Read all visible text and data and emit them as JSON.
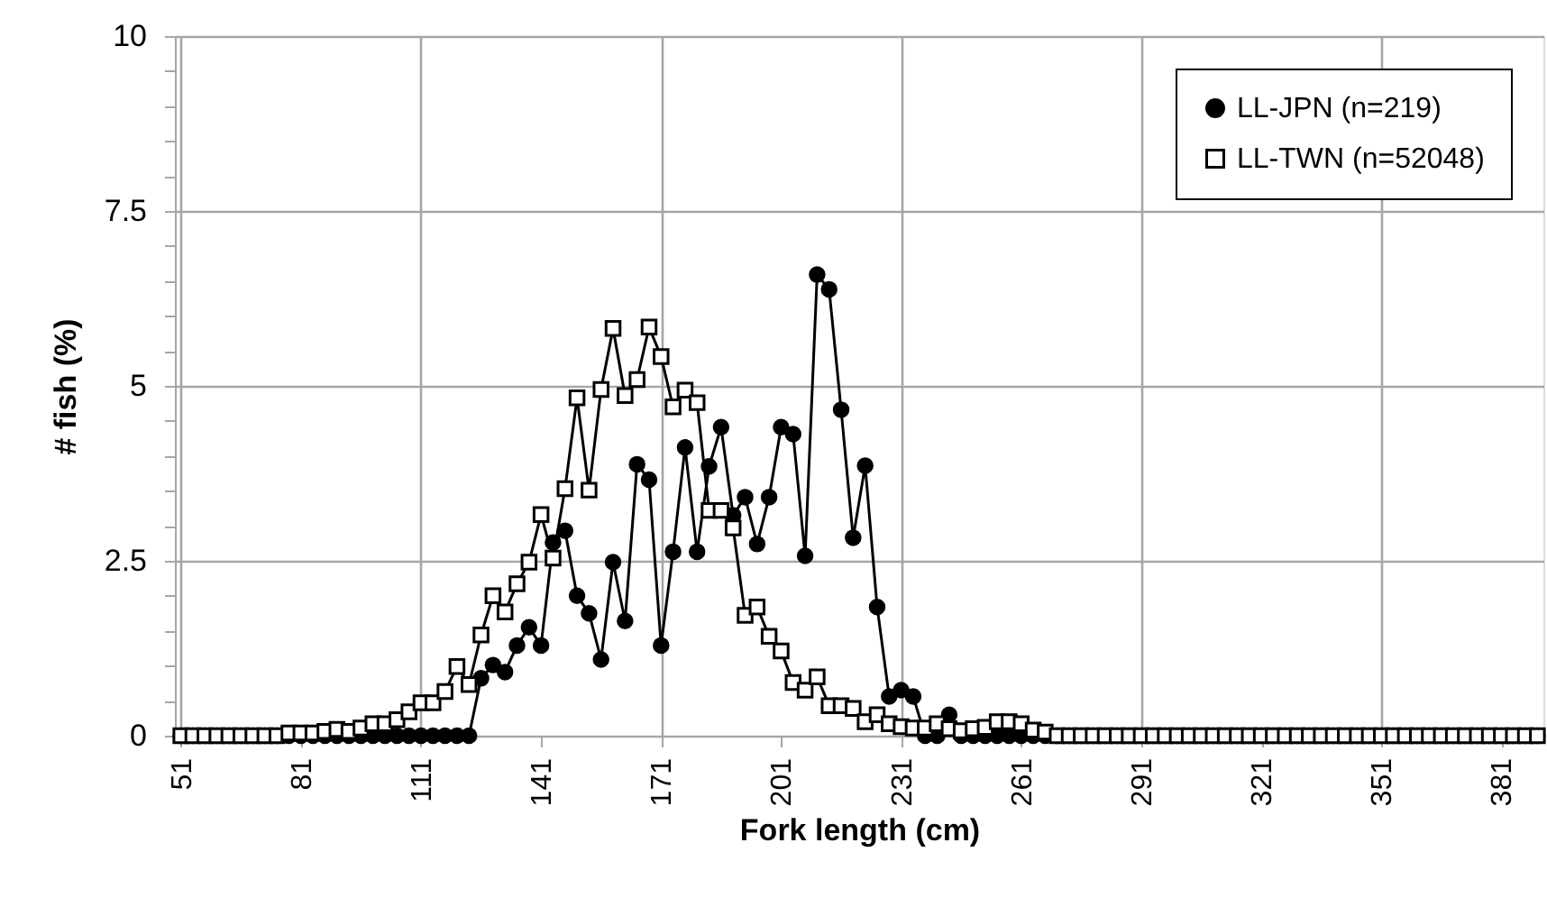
{
  "chart_data": {
    "type": "line",
    "xlabel": "Fork length (cm)",
    "ylabel": "# fish (%)",
    "x": [
      51,
      54,
      57,
      60,
      63,
      66,
      69,
      72,
      75,
      78,
      81,
      84,
      87,
      90,
      93,
      96,
      99,
      102,
      105,
      108,
      111,
      114,
      117,
      120,
      123,
      126,
      129,
      132,
      135,
      138,
      141,
      144,
      147,
      150,
      153,
      156,
      159,
      162,
      165,
      168,
      171,
      174,
      177,
      180,
      183,
      186,
      189,
      192,
      195,
      198,
      201,
      204,
      207,
      210,
      213,
      216,
      219,
      222,
      225,
      228,
      231,
      234,
      237,
      240,
      243,
      246,
      249,
      252,
      255,
      258,
      261,
      264,
      267,
      270,
      273,
      276,
      279,
      282,
      285,
      288,
      291,
      294,
      297,
      300,
      303,
      306,
      309,
      312,
      315,
      318,
      321,
      324,
      327,
      330,
      333,
      336,
      339,
      342,
      345,
      348,
      351,
      354,
      357,
      360,
      363,
      366,
      369,
      372,
      375,
      378,
      381,
      384,
      387,
      390
    ],
    "series": [
      {
        "name": "LL-JPN (n=219)",
        "color": "#000000",
        "marker": "circle",
        "values": [
          0,
          0,
          0,
          0,
          0,
          0,
          0,
          0,
          0,
          0,
          0,
          0,
          0,
          0,
          0,
          0,
          0,
          0,
          0,
          0,
          0,
          0,
          0,
          0,
          0,
          0.82,
          1.01,
          0.91,
          1.29,
          1.55,
          1.29,
          2.76,
          2.93,
          2.0,
          1.75,
          1.09,
          2.48,
          1.64,
          3.88,
          3.66,
          1.29,
          2.63,
          4.12,
          2.63,
          3.85,
          4.41,
          3.15,
          3.41,
          2.74,
          3.41,
          4.41,
          4.31,
          2.57,
          6.59,
          6.38,
          4.66,
          2.83,
          3.86,
          1.84,
          0.56,
          0.65,
          0.56,
          0,
          0,
          0.3,
          0,
          0,
          0,
          0,
          0,
          0,
          0,
          0,
          0,
          0,
          0,
          0,
          0,
          0,
          0,
          0,
          0,
          0,
          0,
          0,
          0,
          0,
          0,
          0,
          0,
          0,
          0,
          0,
          0,
          0,
          0,
          0,
          0,
          0,
          0,
          0,
          0,
          0,
          0,
          0,
          0,
          0,
          0,
          0,
          0,
          0,
          0,
          0,
          0
        ]
      },
      {
        "name": "LL-TWN (n=52048)",
        "color": "#000000",
        "marker": "square",
        "values": [
          0,
          0,
          0,
          0,
          0,
          0,
          0,
          0,
          0,
          0.04,
          0.04,
          0.04,
          0.06,
          0.09,
          0.06,
          0.11,
          0.17,
          0.17,
          0.23,
          0.34,
          0.47,
          0.47,
          0.63,
          0.99,
          0.73,
          1.44,
          2.0,
          1.77,
          2.17,
          2.48,
          3.16,
          2.54,
          3.53,
          4.83,
          3.51,
          4.95,
          5.82,
          4.86,
          5.09,
          5.84,
          5.42,
          4.7,
          4.94,
          4.76,
          3.22,
          3.22,
          2.97,
          1.72,
          1.84,
          1.42,
          1.21,
          0.76,
          0.65,
          0.84,
          0.43,
          0.43,
          0.39,
          0.2,
          0.3,
          0.17,
          0.13,
          0.11,
          0.11,
          0.17,
          0.1,
          0.07,
          0.1,
          0.12,
          0.2,
          0.2,
          0.17,
          0.08,
          0.05,
          0,
          0,
          0,
          0,
          0,
          0,
          0,
          0,
          0,
          0,
          0,
          0,
          0,
          0,
          0,
          0,
          0,
          0,
          0,
          0,
          0,
          0,
          0,
          0,
          0,
          0,
          0,
          0,
          0,
          0,
          0,
          0,
          0,
          0,
          0,
          0,
          0,
          0,
          0,
          0,
          0
        ]
      }
    ],
    "xlim": [
      49.5,
      391.5
    ],
    "xticks": [
      51,
      81,
      111,
      141,
      171,
      201,
      231,
      261,
      291,
      321,
      351,
      381
    ],
    "ylim": [
      0,
      10
    ],
    "yticks": [
      0,
      {
        "value": 0.5,
        "label": null
      },
      {
        "value": 1,
        "label": null
      },
      {
        "value": 1.5,
        "label": null
      },
      {
        "value": 2,
        "label": null
      },
      2.5,
      {
        "value": 3,
        "label": null
      },
      {
        "value": 3.5,
        "label": null
      },
      {
        "value": 4,
        "label": null
      },
      {
        "value": 4.5,
        "label": null
      },
      5,
      {
        "value": 5.5,
        "label": null
      },
      {
        "value": 6,
        "label": null
      },
      {
        "value": 6.5,
        "label": null
      },
      {
        "value": 7,
        "label": null
      },
      7.5,
      {
        "value": 8,
        "label": null
      },
      {
        "value": 8.5,
        "label": null
      },
      {
        "value": 9,
        "label": null
      },
      {
        "value": 9.5,
        "label": null
      },
      10
    ],
    "grid": true,
    "legend": "top right",
    "line_style": "solid"
  }
}
